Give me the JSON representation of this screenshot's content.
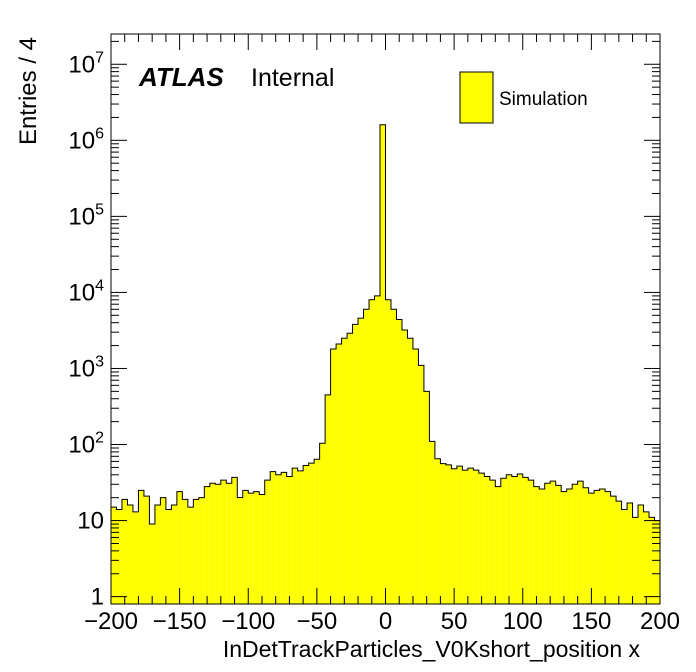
{
  "chart_data": {
    "type": "bar",
    "title": "",
    "xlabel": "InDetTrackParticles_V0Kshort_position x",
    "ylabel": "Entries / 4",
    "xlim": [
      -200,
      200
    ],
    "ylim": [
      0.8,
      25000000
    ],
    "yscale": "log",
    "bin_width": 4,
    "legend": {
      "label": "Simulation",
      "placement": "top-right"
    },
    "atlas_label": {
      "bold": "ATLAS",
      "text": "Internal"
    },
    "fill_color": "#ffff00",
    "line_color": "#000000",
    "x_tick_labels": [
      "−200",
      "−150",
      "−100",
      "−50",
      "0",
      "50",
      "100",
      "150",
      "200"
    ],
    "y_tick_labels": [
      {
        "base": "1",
        "exp": ""
      },
      {
        "base": "10",
        "exp": ""
      },
      {
        "base": "10",
        "exp": "2"
      },
      {
        "base": "10",
        "exp": "3"
      },
      {
        "base": "10",
        "exp": "4"
      },
      {
        "base": "10",
        "exp": "5"
      },
      {
        "base": "10",
        "exp": "6"
      },
      {
        "base": "10",
        "exp": "7"
      }
    ],
    "series": [
      {
        "name": "Simulation",
        "bin_low_edges": [
          -200,
          -196,
          -192,
          -188,
          -184,
          -180,
          -176,
          -172,
          -168,
          -164,
          -160,
          -156,
          -152,
          -148,
          -144,
          -140,
          -136,
          -132,
          -128,
          -124,
          -120,
          -116,
          -112,
          -108,
          -104,
          -100,
          -96,
          -92,
          -88,
          -84,
          -80,
          -76,
          -72,
          -68,
          -64,
          -60,
          -56,
          -52,
          -48,
          -44,
          -40,
          -36,
          -32,
          -28,
          -24,
          -20,
          -16,
          -12,
          -8,
          -4,
          0,
          4,
          8,
          12,
          16,
          20,
          24,
          28,
          32,
          36,
          40,
          44,
          48,
          52,
          56,
          60,
          64,
          68,
          72,
          76,
          80,
          84,
          88,
          92,
          96,
          100,
          104,
          108,
          112,
          116,
          120,
          124,
          128,
          132,
          136,
          140,
          144,
          148,
          152,
          156,
          160,
          164,
          168,
          172,
          176,
          180,
          184,
          188,
          192,
          196
        ],
        "values": [
          15,
          14,
          19,
          16,
          13,
          25,
          21,
          9,
          16,
          20,
          14,
          16,
          24,
          19,
          15,
          19,
          20,
          28,
          31,
          30,
          34,
          31,
          37,
          20,
          25,
          23,
          24,
          22,
          34,
          44,
          40,
          43,
          38,
          49,
          45,
          53,
          57,
          64,
          104,
          450,
          1800,
          2100,
          2500,
          2900,
          3800,
          4600,
          6000,
          8000,
          9000,
          1600000,
          8000,
          6000,
          4400,
          3200,
          2500,
          1800,
          1100,
          500,
          110,
          65,
          56,
          54,
          48,
          52,
          46,
          49,
          46,
          42,
          38,
          34,
          28,
          36,
          40,
          38,
          41,
          37,
          34,
          28,
          26,
          31,
          33,
          29,
          24,
          26,
          30,
          33,
          27,
          23,
          25,
          26,
          24,
          21,
          18,
          14,
          17,
          11,
          16,
          13,
          11,
          10
        ]
      }
    ]
  }
}
